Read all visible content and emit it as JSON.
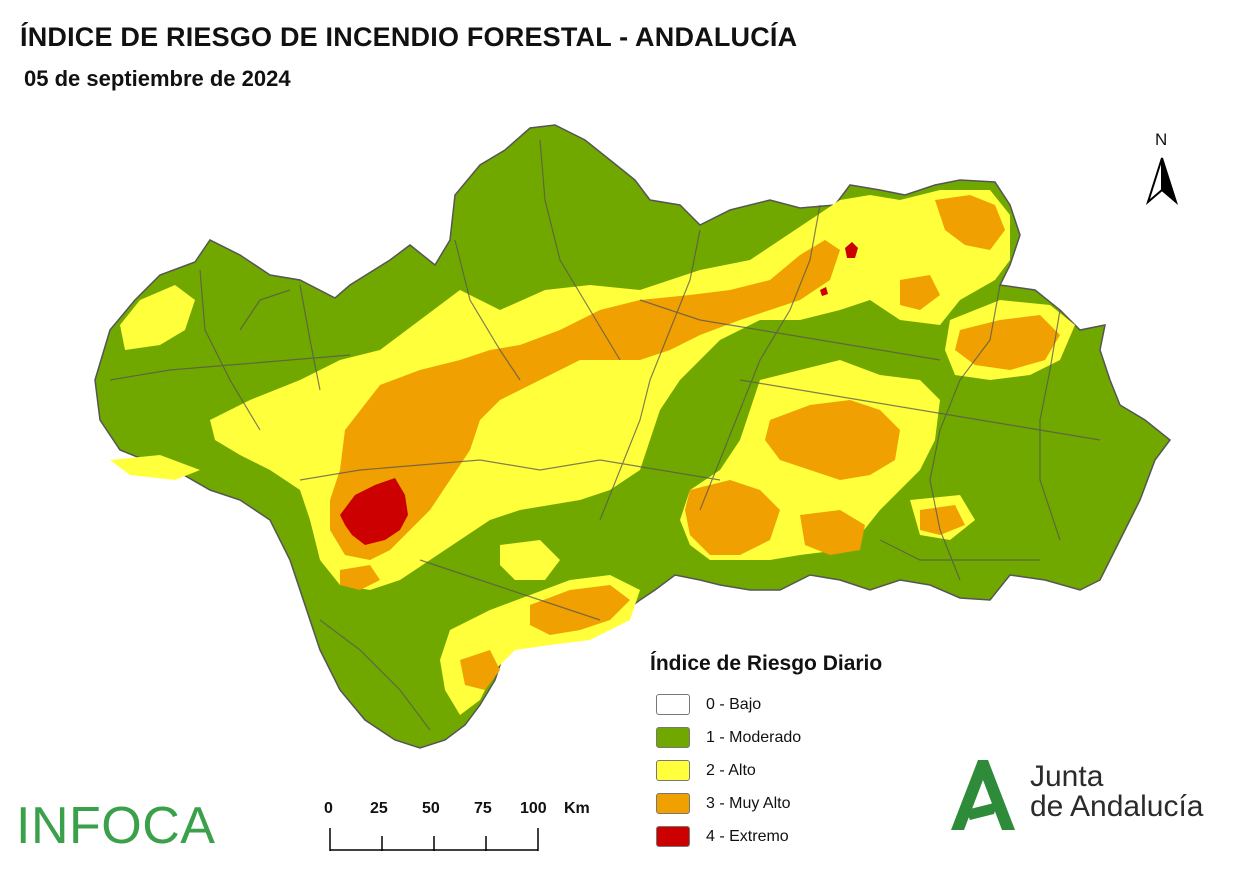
{
  "title": "ÍNDICE DE RIESGO DE INCENDIO FORESTAL - ANDALUCÍA",
  "date": "05 de septiembre de 2024",
  "north_label": "N",
  "legend": {
    "title": "Índice de Riesgo Diario",
    "items": [
      {
        "label": "0 - Bajo",
        "color": "#ffffff"
      },
      {
        "label": "1 - Moderado",
        "color": "#70a800"
      },
      {
        "label": "2 - Alto",
        "color": "#ffff3c"
      },
      {
        "label": "3 - Muy Alto",
        "color": "#f0a000"
      },
      {
        "label": "4 - Extremo",
        "color": "#cc0000"
      }
    ]
  },
  "scale": {
    "ticks": [
      "0",
      "25",
      "50",
      "75",
      "100"
    ],
    "unit": "Km"
  },
  "logos": {
    "infoca": "INFOCA",
    "junta_line1": "Junta",
    "junta_line2": "de Andalucía",
    "junta_color": "#2e8b3a"
  },
  "map_colors": {
    "moderado": "#70a800",
    "alto": "#ffff3c",
    "muy_alto": "#f0a000",
    "extremo": "#cc0000",
    "borders": "#555555"
  }
}
